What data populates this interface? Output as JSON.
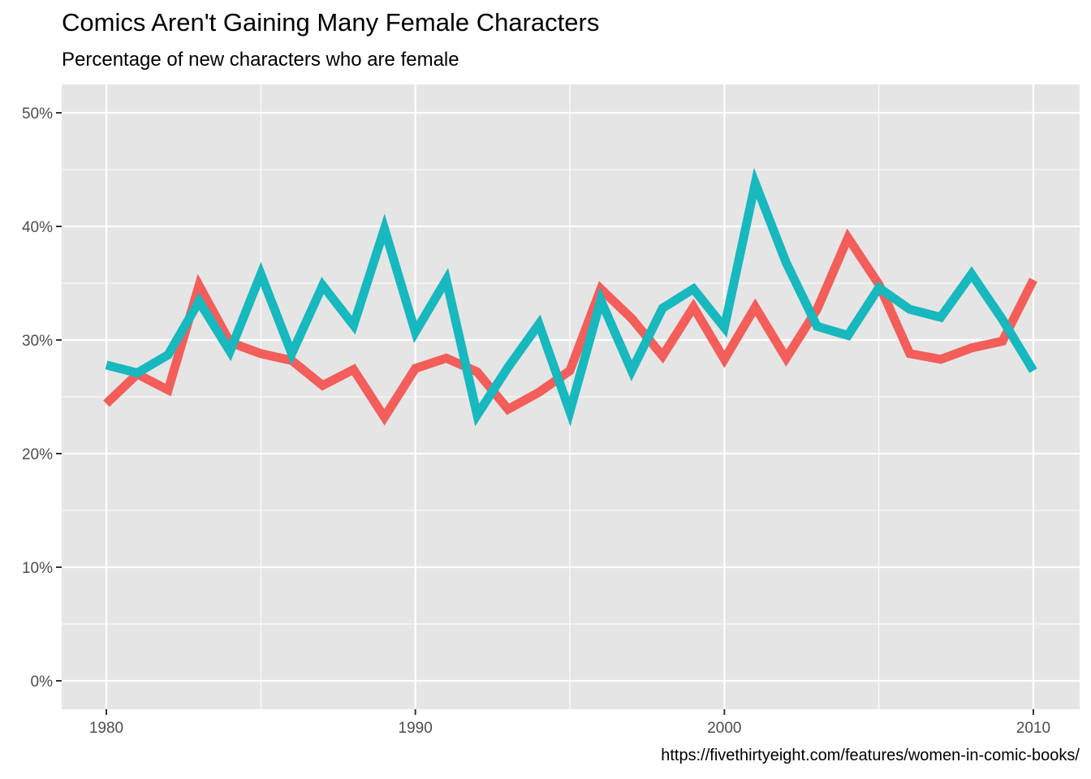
{
  "title": "Comics Aren't Gaining Many Female Characters",
  "subtitle": "Percentage of new characters who are female",
  "caption": "https://fivethirtyeight.com/features/women-in-comic-books/",
  "colors": {
    "panel_bg": "#e5e5e5",
    "grid": "#ffffff",
    "tick_text": "#4d4d4d",
    "series_1": "#f35e5a",
    "series_2": "#17b8be"
  },
  "chart_data": {
    "type": "line",
    "title": "Comics Aren't Gaining Many Female Characters",
    "subtitle": "Percentage of new characters who are female",
    "xlabel": "",
    "ylabel": "",
    "xlim": [
      1980,
      2010
    ],
    "ylim": [
      0,
      50
    ],
    "x_ticks": [
      1980,
      1990,
      2000,
      2010
    ],
    "x_tick_labels": [
      "1980",
      "1990",
      "2000",
      "2010"
    ],
    "y_ticks": [
      0,
      10,
      20,
      30,
      40,
      50
    ],
    "y_tick_labels": [
      "0%",
      "10%",
      "20%",
      "30%",
      "40%",
      "50%"
    ],
    "y_unit": "percent",
    "grid": true,
    "legend": "none",
    "x": [
      1980,
      1981,
      1982,
      1983,
      1984,
      1985,
      1986,
      1987,
      1988,
      1989,
      1990,
      1991,
      1992,
      1993,
      1994,
      1995,
      1996,
      1997,
      1998,
      1999,
      2000,
      2001,
      2002,
      2003,
      2004,
      2005,
      2006,
      2007,
      2008,
      2009,
      2010
    ],
    "series": [
      {
        "color": "#f35e5a",
        "values": [
          24.4,
          27.0,
          25.6,
          34.8,
          29.8,
          28.8,
          28.2,
          26.0,
          27.4,
          23.2,
          27.5,
          28.4,
          27.2,
          23.9,
          25.4,
          27.3,
          34.5,
          31.9,
          28.6,
          32.9,
          28.3,
          32.9,
          28.4,
          32.7,
          39.0,
          34.9,
          28.8,
          28.3,
          29.3,
          29.9,
          35.3
        ]
      },
      {
        "color": "#17b8be",
        "values": [
          27.8,
          27.1,
          28.7,
          33.4,
          29.0,
          35.8,
          28.8,
          34.8,
          31.3,
          39.8,
          30.7,
          35.3,
          23.4,
          27.6,
          31.4,
          23.7,
          33.5,
          27.3,
          32.8,
          34.5,
          31.1,
          43.8,
          36.8,
          31.2,
          30.4,
          34.6,
          32.7,
          32.0,
          35.8,
          31.8,
          27.3
        ]
      }
    ]
  }
}
